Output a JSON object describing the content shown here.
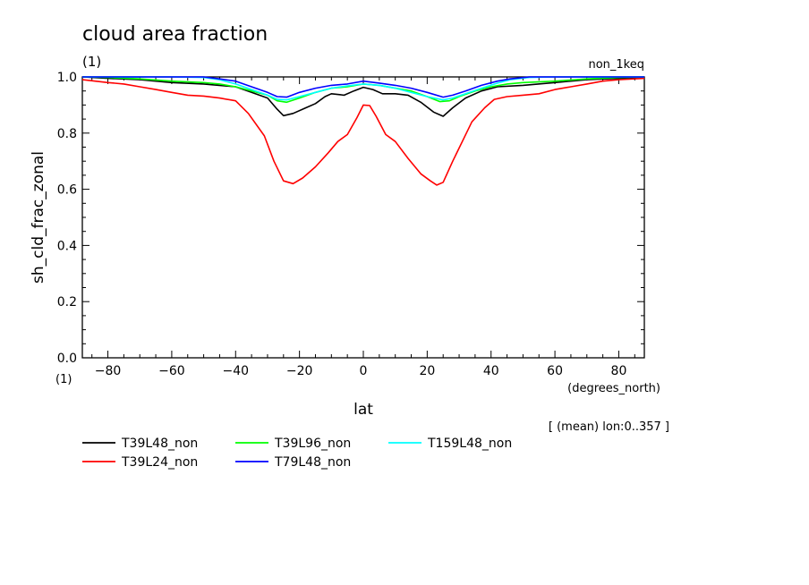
{
  "chart_data": {
    "type": "line",
    "title": "cloud area fraction",
    "title_units": "(1)",
    "experiment": "non_1keq",
    "ylabel": "sh_cld_frac_zonal",
    "y_units": "(1)",
    "xlabel": "lat",
    "x_units": "(degrees_north)",
    "note": "[ (mean) lon:0..357 ]",
    "xlim": [
      -88,
      88
    ],
    "ylim": [
      0.0,
      1.0
    ],
    "x_ticks": [
      -80,
      -60,
      -40,
      -20,
      0,
      20,
      40,
      60,
      80
    ],
    "y_ticks": [
      0.0,
      0.2,
      0.4,
      0.6,
      0.8,
      1.0
    ],
    "x_tick_labels": [
      "−80",
      "−60",
      "−40",
      "−20",
      "0",
      "20",
      "40",
      "60",
      "80"
    ],
    "y_tick_labels": [
      "0.0",
      "0.2",
      "0.4",
      "0.6",
      "0.8",
      "1.0"
    ],
    "grid": false,
    "legend_position": "bottom",
    "series": [
      {
        "name": "T39L48_non",
        "color": "#000000",
        "points": [
          [
            -88,
            1.0
          ],
          [
            -80,
            0.995
          ],
          [
            -70,
            0.99
          ],
          [
            -60,
            0.98
          ],
          [
            -50,
            0.975
          ],
          [
            -40,
            0.965
          ],
          [
            -35,
            0.945
          ],
          [
            -30,
            0.925
          ],
          [
            -27,
            0.885
          ],
          [
            -25,
            0.862
          ],
          [
            -22,
            0.87
          ],
          [
            -18,
            0.89
          ],
          [
            -15,
            0.905
          ],
          [
            -12,
            0.93
          ],
          [
            -10,
            0.94
          ],
          [
            -6,
            0.935
          ],
          [
            -3,
            0.95
          ],
          [
            0,
            0.963
          ],
          [
            3,
            0.955
          ],
          [
            6,
            0.94
          ],
          [
            10,
            0.94
          ],
          [
            14,
            0.935
          ],
          [
            18,
            0.91
          ],
          [
            22,
            0.875
          ],
          [
            25,
            0.86
          ],
          [
            28,
            0.89
          ],
          [
            32,
            0.925
          ],
          [
            37,
            0.95
          ],
          [
            42,
            0.965
          ],
          [
            50,
            0.97
          ],
          [
            60,
            0.98
          ],
          [
            70,
            0.99
          ],
          [
            80,
            0.995
          ],
          [
            88,
            1.0
          ]
        ]
      },
      {
        "name": "T39L24_non",
        "color": "#ff0000",
        "points": [
          [
            -88,
            0.99
          ],
          [
            -84,
            0.985
          ],
          [
            -80,
            0.98
          ],
          [
            -75,
            0.975
          ],
          [
            -70,
            0.965
          ],
          [
            -65,
            0.955
          ],
          [
            -60,
            0.945
          ],
          [
            -55,
            0.935
          ],
          [
            -50,
            0.932
          ],
          [
            -45,
            0.925
          ],
          [
            -40,
            0.915
          ],
          [
            -36,
            0.87
          ],
          [
            -31,
            0.79
          ],
          [
            -28,
            0.7
          ],
          [
            -25,
            0.63
          ],
          [
            -22,
            0.62
          ],
          [
            -19,
            0.64
          ],
          [
            -15,
            0.68
          ],
          [
            -11,
            0.73
          ],
          [
            -8,
            0.77
          ],
          [
            -5,
            0.795
          ],
          [
            -2,
            0.855
          ],
          [
            0,
            0.9
          ],
          [
            2,
            0.898
          ],
          [
            4,
            0.86
          ],
          [
            7,
            0.795
          ],
          [
            10,
            0.77
          ],
          [
            14,
            0.71
          ],
          [
            18,
            0.655
          ],
          [
            21,
            0.63
          ],
          [
            23,
            0.615
          ],
          [
            25,
            0.625
          ],
          [
            28,
            0.7
          ],
          [
            31,
            0.77
          ],
          [
            34,
            0.84
          ],
          [
            38,
            0.89
          ],
          [
            41,
            0.92
          ],
          [
            45,
            0.93
          ],
          [
            50,
            0.935
          ],
          [
            55,
            0.94
          ],
          [
            60,
            0.955
          ],
          [
            65,
            0.965
          ],
          [
            70,
            0.975
          ],
          [
            75,
            0.985
          ],
          [
            80,
            0.99
          ],
          [
            88,
            0.995
          ]
        ]
      },
      {
        "name": "T39L96_non",
        "color": "#00ff00",
        "points": [
          [
            -88,
            1.0
          ],
          [
            -80,
            0.998
          ],
          [
            -70,
            0.993
          ],
          [
            -60,
            0.985
          ],
          [
            -50,
            0.98
          ],
          [
            -45,
            0.975
          ],
          [
            -40,
            0.965
          ],
          [
            -35,
            0.95
          ],
          [
            -30,
            0.935
          ],
          [
            -27,
            0.915
          ],
          [
            -24,
            0.91
          ],
          [
            -20,
            0.925
          ],
          [
            -15,
            0.945
          ],
          [
            -10,
            0.96
          ],
          [
            -5,
            0.965
          ],
          [
            0,
            0.975
          ],
          [
            5,
            0.97
          ],
          [
            10,
            0.96
          ],
          [
            15,
            0.95
          ],
          [
            20,
            0.93
          ],
          [
            24,
            0.912
          ],
          [
            27,
            0.915
          ],
          [
            30,
            0.93
          ],
          [
            35,
            0.95
          ],
          [
            40,
            0.965
          ],
          [
            45,
            0.975
          ],
          [
            50,
            0.98
          ],
          [
            60,
            0.985
          ],
          [
            70,
            0.993
          ],
          [
            80,
            0.998
          ],
          [
            88,
            1.0
          ]
        ]
      },
      {
        "name": "T79L48_non",
        "color": "#0000ff",
        "points": [
          [
            -88,
            1.0
          ],
          [
            -75,
            1.0
          ],
          [
            -60,
            1.0
          ],
          [
            -50,
            1.0
          ],
          [
            -45,
            0.993
          ],
          [
            -40,
            0.985
          ],
          [
            -35,
            0.965
          ],
          [
            -30,
            0.945
          ],
          [
            -27,
            0.93
          ],
          [
            -24,
            0.928
          ],
          [
            -20,
            0.945
          ],
          [
            -15,
            0.96
          ],
          [
            -10,
            0.97
          ],
          [
            -5,
            0.975
          ],
          [
            0,
            0.985
          ],
          [
            5,
            0.978
          ],
          [
            10,
            0.97
          ],
          [
            15,
            0.96
          ],
          [
            20,
            0.945
          ],
          [
            25,
            0.928
          ],
          [
            28,
            0.935
          ],
          [
            32,
            0.95
          ],
          [
            37,
            0.97
          ],
          [
            42,
            0.985
          ],
          [
            46,
            0.993
          ],
          [
            52,
            1.0
          ],
          [
            60,
            1.0
          ],
          [
            75,
            1.0
          ],
          [
            88,
            1.0
          ]
        ]
      },
      {
        "name": "T159L48_non",
        "color": "#00ffff",
        "points": [
          [
            -88,
            1.0
          ],
          [
            -75,
            1.0
          ],
          [
            -60,
            1.0
          ],
          [
            -50,
            0.998
          ],
          [
            -45,
            0.99
          ],
          [
            -40,
            0.975
          ],
          [
            -35,
            0.955
          ],
          [
            -30,
            0.935
          ],
          [
            -27,
            0.92
          ],
          [
            -24,
            0.918
          ],
          [
            -20,
            0.93
          ],
          [
            -15,
            0.945
          ],
          [
            -10,
            0.96
          ],
          [
            -5,
            0.968
          ],
          [
            0,
            0.975
          ],
          [
            5,
            0.97
          ],
          [
            10,
            0.96
          ],
          [
            15,
            0.945
          ],
          [
            20,
            0.93
          ],
          [
            25,
            0.918
          ],
          [
            28,
            0.925
          ],
          [
            32,
            0.94
          ],
          [
            37,
            0.96
          ],
          [
            42,
            0.978
          ],
          [
            46,
            0.99
          ],
          [
            52,
            0.998
          ],
          [
            60,
            1.0
          ],
          [
            75,
            1.0
          ],
          [
            88,
            1.0
          ]
        ]
      }
    ]
  }
}
